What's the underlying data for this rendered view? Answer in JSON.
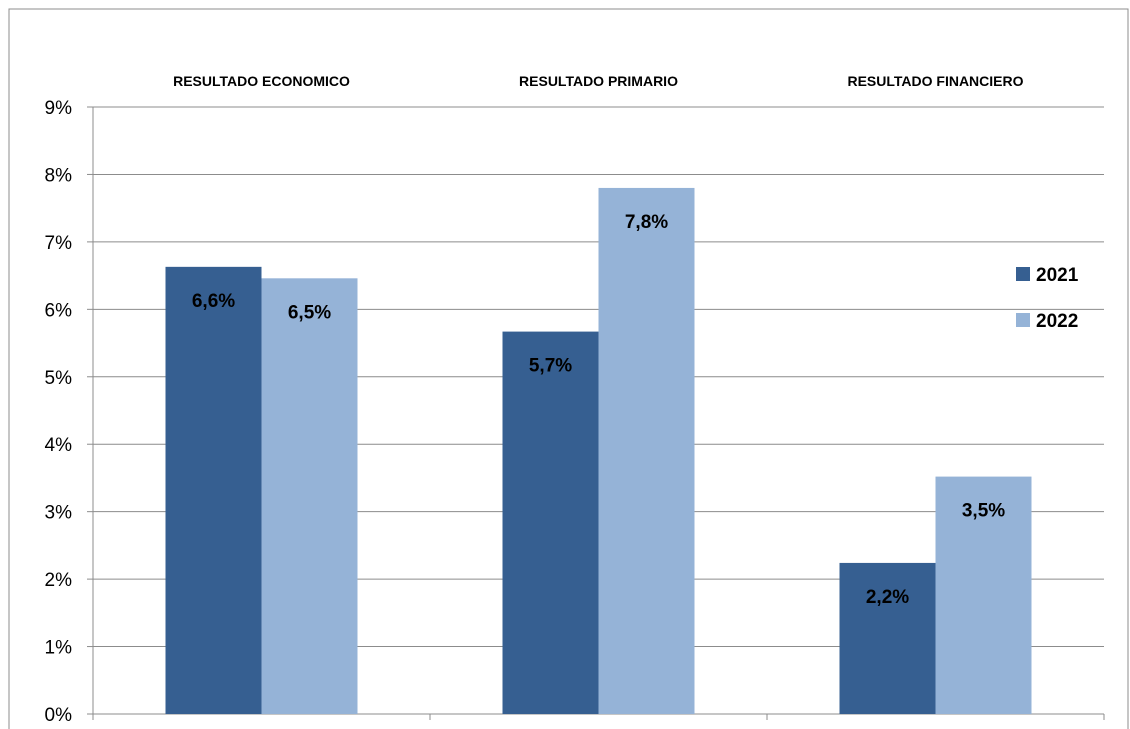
{
  "chart_data": {
    "type": "bar",
    "categories": [
      "RESULTADO ECONOMICO",
      "RESULTADO PRIMARIO",
      "RESULTADO FINANCIERO"
    ],
    "series": [
      {
        "name": "2021",
        "color": "#365F91",
        "values": [
          6.63,
          5.67,
          2.24
        ],
        "labels": [
          "6,6%",
          "5,7%",
          "2,2%"
        ]
      },
      {
        "name": "2022",
        "color": "#95B3D7",
        "values": [
          6.46,
          7.8,
          3.52
        ],
        "labels": [
          "6,5%",
          "7,8%",
          "3,5%"
        ]
      }
    ],
    "ylim": [
      0,
      9
    ],
    "yticks": [
      0,
      1,
      2,
      3,
      4,
      5,
      6,
      7,
      8,
      9
    ],
    "ytick_labels": [
      "0%",
      "1%",
      "2%",
      "3%",
      "4%",
      "5%",
      "6%",
      "7%",
      "8%",
      "9%"
    ],
    "grid": true,
    "legend_position": "right",
    "category_labels_position": "top",
    "title": "",
    "xlabel": "",
    "ylabel": ""
  }
}
